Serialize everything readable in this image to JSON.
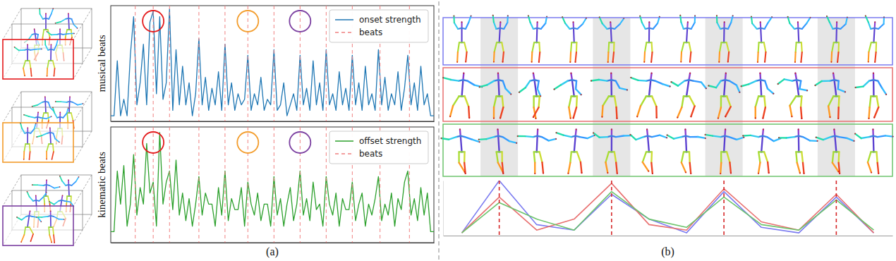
{
  "chart_data": [
    {
      "type": "line",
      "ylabel": "musical beats",
      "x": [
        0,
        1,
        2,
        3,
        4,
        5,
        6,
        7,
        8,
        9,
        10,
        11,
        12,
        13,
        14,
        15,
        16,
        17,
        18,
        19,
        20,
        21,
        22,
        23,
        24,
        25,
        26,
        27,
        28,
        29,
        30,
        31,
        32,
        33,
        34,
        35,
        36,
        37,
        38,
        39,
        40,
        41,
        42,
        43,
        44,
        45,
        46,
        47,
        48,
        49,
        50,
        51,
        52,
        53,
        54,
        55,
        56,
        57,
        58,
        59,
        60,
        61,
        62,
        63,
        64,
        65,
        66,
        67,
        68,
        69,
        70,
        71,
        72,
        73,
        74,
        75,
        76,
        77,
        78,
        79,
        80,
        81,
        82,
        83,
        84,
        85,
        86,
        87,
        88,
        89,
        90,
        91,
        92,
        93,
        94,
        95,
        96,
        97,
        98,
        99
      ],
      "series": [
        {
          "name": "onset strength",
          "color": "#1f77b4",
          "values": [
            0,
            0,
            0.5,
            0,
            0.15,
            0,
            0.55,
            0.9,
            0.1,
            0.3,
            0.65,
            0.1,
            0.85,
            0.95,
            0.2,
            0.9,
            0.15,
            0.3,
            0.97,
            0.05,
            0.6,
            0.1,
            0.45,
            0.1,
            0.3,
            0,
            0.2,
            0.7,
            0.1,
            0.35,
            0.05,
            0.25,
            0.1,
            0.4,
            0.05,
            0.65,
            0.1,
            0.3,
            0.05,
            0.2,
            0.1,
            0.15,
            0.55,
            0.05,
            0.2,
            0.1,
            0.35,
            0.05,
            0.15,
            0.1,
            0.6,
            0.05,
            0.1,
            0.3,
            0,
            0.1,
            0.2,
            0.05,
            0.55,
            0.1,
            0.25,
            0.05,
            0.5,
            0.1,
            0.3,
            0.05,
            0.6,
            0.1,
            0.2,
            0.05,
            0.4,
            0.1,
            0.25,
            0.05,
            0.55,
            0.1,
            0.3,
            0.05,
            0.45,
            0.1,
            0.2,
            0.05,
            0.6,
            0.1,
            0.35,
            0.05,
            0.2,
            0.1,
            0.4,
            0.05,
            0.25,
            0.55,
            0.1,
            0.3,
            0.05,
            0.45,
            0.1,
            0.2,
            0,
            0
          ]
        },
        {
          "name": "beats",
          "type": "vline",
          "color": "#f08080",
          "line_style": "dashed",
          "x": [
            7.5,
            13,
            18,
            27,
            35,
            42,
            50,
            58,
            66,
            74,
            82.5,
            91.5
          ]
        }
      ],
      "xlim": [
        0,
        99
      ],
      "ylim": [
        -0.05,
        1
      ],
      "tick_labels": false,
      "legend": "upper right",
      "circles": [
        {
          "x": 13,
          "color": "#e41a1c"
        },
        {
          "x": 42,
          "color": "#f39c2b"
        },
        {
          "x": 58,
          "color": "#7b3fa0"
        }
      ]
    },
    {
      "type": "line",
      "ylabel": "kinematic beats",
      "xlabel": "(a)",
      "x": [
        0,
        1,
        2,
        3,
        4,
        5,
        6,
        7,
        8,
        9,
        10,
        11,
        12,
        13,
        14,
        15,
        16,
        17,
        18,
        19,
        20,
        21,
        22,
        23,
        24,
        25,
        26,
        27,
        28,
        29,
        30,
        31,
        32,
        33,
        34,
        35,
        36,
        37,
        38,
        39,
        40,
        41,
        42,
        43,
        44,
        45,
        46,
        47,
        48,
        49,
        50,
        51,
        52,
        53,
        54,
        55,
        56,
        57,
        58,
        59,
        60,
        61,
        62,
        63,
        64,
        65,
        66,
        67,
        68,
        69,
        70,
        71,
        72,
        73,
        74,
        75,
        76,
        77,
        78,
        79,
        80,
        81,
        82,
        83,
        84,
        85,
        86,
        87,
        88,
        89,
        90,
        91,
        92,
        93,
        94,
        95,
        96,
        97,
        98,
        99
      ],
      "series": [
        {
          "name": "offset strength",
          "color": "#2ca02c",
          "values": [
            0.05,
            0.05,
            0.6,
            0.3,
            0.65,
            0.1,
            0.3,
            0.75,
            0.2,
            0.45,
            0.3,
            0.85,
            0.4,
            0.5,
            0.1,
            0.95,
            0.3,
            0.5,
            0.6,
            0.25,
            0.7,
            0.2,
            0.4,
            0.15,
            0.35,
            0.1,
            0.3,
            0.55,
            0.2,
            0.4,
            0.3,
            0.3,
            0.1,
            0.45,
            0.2,
            0.6,
            0.15,
            0.35,
            0.25,
            0.25,
            0.45,
            0.1,
            0.5,
            0.3,
            0.2,
            0.4,
            0.15,
            0.3,
            0.3,
            0.1,
            0.55,
            0.2,
            0.35,
            0.1,
            0.3,
            0.45,
            0.15,
            0.3,
            0.6,
            0.2,
            0.35,
            0.15,
            0.5,
            0.25,
            0.3,
            0.1,
            0.55,
            0.3,
            0.2,
            0.4,
            0.1,
            0.35,
            0.25,
            0.25,
            0.5,
            0.15,
            0.3,
            0.4,
            0.1,
            0.3,
            0.2,
            0.35,
            0.55,
            0.15,
            0.3,
            0.2,
            0.4,
            0.1,
            0.35,
            0.25,
            0.5,
            0.6,
            0.2,
            0.35,
            0.15,
            0.45,
            0.2,
            0.4,
            0.05,
            0.05
          ]
        },
        {
          "name": "beats",
          "type": "vline",
          "color": "#f08080",
          "line_style": "dashed",
          "x": [
            7.5,
            13,
            18,
            27,
            35,
            42,
            50,
            58,
            66,
            74,
            82.5,
            91.5
          ]
        }
      ],
      "xlim": [
        0,
        99
      ],
      "ylim": [
        -0.05,
        1
      ],
      "tick_labels": false,
      "legend": "upper right",
      "circles": [
        {
          "x": 13,
          "color": "#e41a1c"
        },
        {
          "x": 42,
          "color": "#f39c2b"
        },
        {
          "x": 58,
          "color": "#7b3fa0"
        }
      ]
    },
    {
      "type": "line",
      "xlabel": "(b)",
      "x": [
        0,
        1,
        2,
        3,
        4,
        5,
        6,
        7,
        8,
        9,
        10,
        11
      ],
      "series": [
        {
          "color": "#7b7bf0",
          "values": [
            0.05,
            1.0,
            0.2,
            0.1,
            0.75,
            0.3,
            0.05,
            0.8,
            0.15,
            0.05,
            0.7,
            0.05
          ]
        },
        {
          "color": "#e87070",
          "values": [
            0.05,
            0.7,
            0.1,
            0.3,
            0.95,
            0.2,
            0.1,
            0.85,
            0.25,
            0.1,
            0.75,
            0.05
          ]
        },
        {
          "color": "#6cc46c",
          "values": [
            0.05,
            0.6,
            0.3,
            0.1,
            0.8,
            0.3,
            0.15,
            0.7,
            0.2,
            0.1,
            0.65,
            0.1
          ]
        },
        {
          "type": "vline",
          "color": "#d62728",
          "line_style": "dashed",
          "x": [
            1,
            4,
            7,
            10
          ]
        }
      ],
      "xlim": [
        -0.5,
        11.5
      ],
      "ylim": [
        0,
        1
      ],
      "tick_labels": false
    }
  ]
}
